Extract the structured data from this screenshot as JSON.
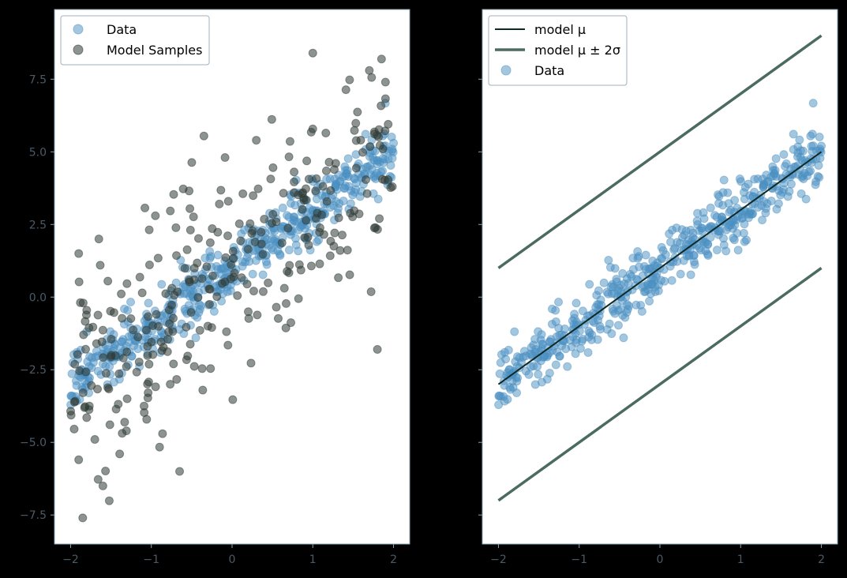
{
  "style": {
    "background": "#000000",
    "axes_face": "#ffffff",
    "tick_label_color": "#4b5b66",
    "data_color": "#4a8fc2",
    "model_samples_color": "#2f3a34",
    "model_mu_color": "#0f2a26",
    "model_band_color": "#4b6b62"
  },
  "chart_data": [
    {
      "type": "scatter",
      "title": "",
      "xlabel": "",
      "ylabel": "",
      "xlim": [
        -2.2,
        2.2
      ],
      "ylim": [
        -8.5,
        9.9
      ],
      "xticks": [
        -2,
        -1,
        0,
        1,
        2
      ],
      "xtick_labels": [
        "−2",
        "−1",
        "0",
        "1",
        "2"
      ],
      "yticks": [
        -7.5,
        -5.0,
        -2.5,
        0.0,
        2.5,
        5.0,
        7.5
      ],
      "ytick_labels": [
        "−7.5",
        "−5.0",
        "−2.5",
        "0.0",
        "2.5",
        "5.0",
        "7.5"
      ],
      "legend_position": "upper-left",
      "series": [
        {
          "name": "Data",
          "kind": "scatter",
          "color": "#4a8fc2",
          "opacity": 0.5,
          "generator": {
            "count": 500,
            "x_range": [
              -2,
              2
            ],
            "intercept": 1.0,
            "slope": 2.0,
            "noise_sd": 0.5,
            "seed": 7
          },
          "points": [
            [
              -1.9,
              -2.7
            ],
            [
              -1.8,
              -3.0
            ],
            [
              -1.6,
              -2.3
            ],
            [
              -1.5,
              -2.1
            ],
            [
              -1.2,
              -1.5
            ],
            [
              -1.0,
              -0.9
            ],
            [
              -0.8,
              -0.6
            ],
            [
              -0.5,
              0.1
            ],
            [
              -0.3,
              0.4
            ],
            [
              0.0,
              1.0
            ],
            [
              0.2,
              1.5
            ],
            [
              0.5,
              2.0
            ],
            [
              0.8,
              2.6
            ],
            [
              1.0,
              3.0
            ],
            [
              1.3,
              3.7
            ],
            [
              1.6,
              4.1
            ],
            [
              1.8,
              4.7
            ],
            [
              2.0,
              5.3
            ]
          ]
        },
        {
          "name": "Model Samples",
          "kind": "scatter",
          "color": "#2f3a34",
          "opacity": 0.55,
          "generator": {
            "count": 300,
            "x_range": [
              -2,
              2
            ],
            "intercept": 1.0,
            "slope": 2.0,
            "noise_sd": 2.0,
            "seed": 19
          },
          "points": [
            [
              -1.9,
              -5.6
            ],
            [
              -1.85,
              -7.6
            ],
            [
              -1.7,
              -4.9
            ],
            [
              -1.6,
              -6.5
            ],
            [
              -1.3,
              -3.5
            ],
            [
              -0.65,
              -6.0
            ],
            [
              -1.9,
              1.5
            ],
            [
              -1.65,
              2.0
            ],
            [
              -0.95,
              2.8
            ],
            [
              0.3,
              5.4
            ],
            [
              1.0,
              8.4
            ],
            [
              1.7,
              7.8
            ],
            [
              1.8,
              -1.8
            ],
            [
              1.9,
              7.4
            ],
            [
              -0.3,
              -1.0
            ]
          ]
        }
      ]
    },
    {
      "type": "line",
      "title": "",
      "xlabel": "",
      "ylabel": "",
      "xlim": [
        -2.2,
        2.2
      ],
      "ylim": [
        -8.5,
        9.9
      ],
      "xticks": [
        -2,
        -1,
        0,
        1,
        2
      ],
      "xtick_labels": [
        "−2",
        "−1",
        "0",
        "1",
        "2"
      ],
      "yticks": [
        -7.5,
        -5.0,
        -2.5,
        0.0,
        2.5,
        5.0,
        7.5
      ],
      "ytick_labels": [
        "",
        "",
        "",
        "",
        "",
        "",
        ""
      ],
      "legend_position": "upper-left",
      "series": [
        {
          "name": "model μ",
          "kind": "line",
          "color": "#0f2a26",
          "x": [
            -2,
            2
          ],
          "y": [
            -3.0,
            5.0
          ]
        },
        {
          "name": "model μ ± 2σ",
          "kind": "line",
          "color": "#4b6b62",
          "x": [
            -2,
            2
          ],
          "y": [
            1.0,
            9.0
          ]
        },
        {
          "name": "",
          "kind": "line",
          "color": "#4b6b62",
          "x": [
            -2,
            2
          ],
          "y": [
            -7.0,
            1.0
          ]
        },
        {
          "name": "Data",
          "kind": "scatter",
          "color": "#4a8fc2",
          "opacity": 0.5,
          "generator": {
            "count": 500,
            "x_range": [
              -2,
              2
            ],
            "intercept": 1.0,
            "slope": 2.0,
            "noise_sd": 0.5,
            "seed": 7
          },
          "points": [
            [
              -1.9,
              -2.7
            ],
            [
              -1.6,
              -2.4
            ],
            [
              -1.2,
              -1.5
            ],
            [
              -0.8,
              -0.6
            ],
            [
              -0.4,
              0.2
            ],
            [
              0.0,
              1.0
            ],
            [
              0.4,
              1.8
            ],
            [
              0.8,
              2.6
            ],
            [
              1.2,
              3.4
            ],
            [
              1.6,
              4.2
            ],
            [
              2.0,
              5.2
            ]
          ]
        }
      ]
    }
  ]
}
